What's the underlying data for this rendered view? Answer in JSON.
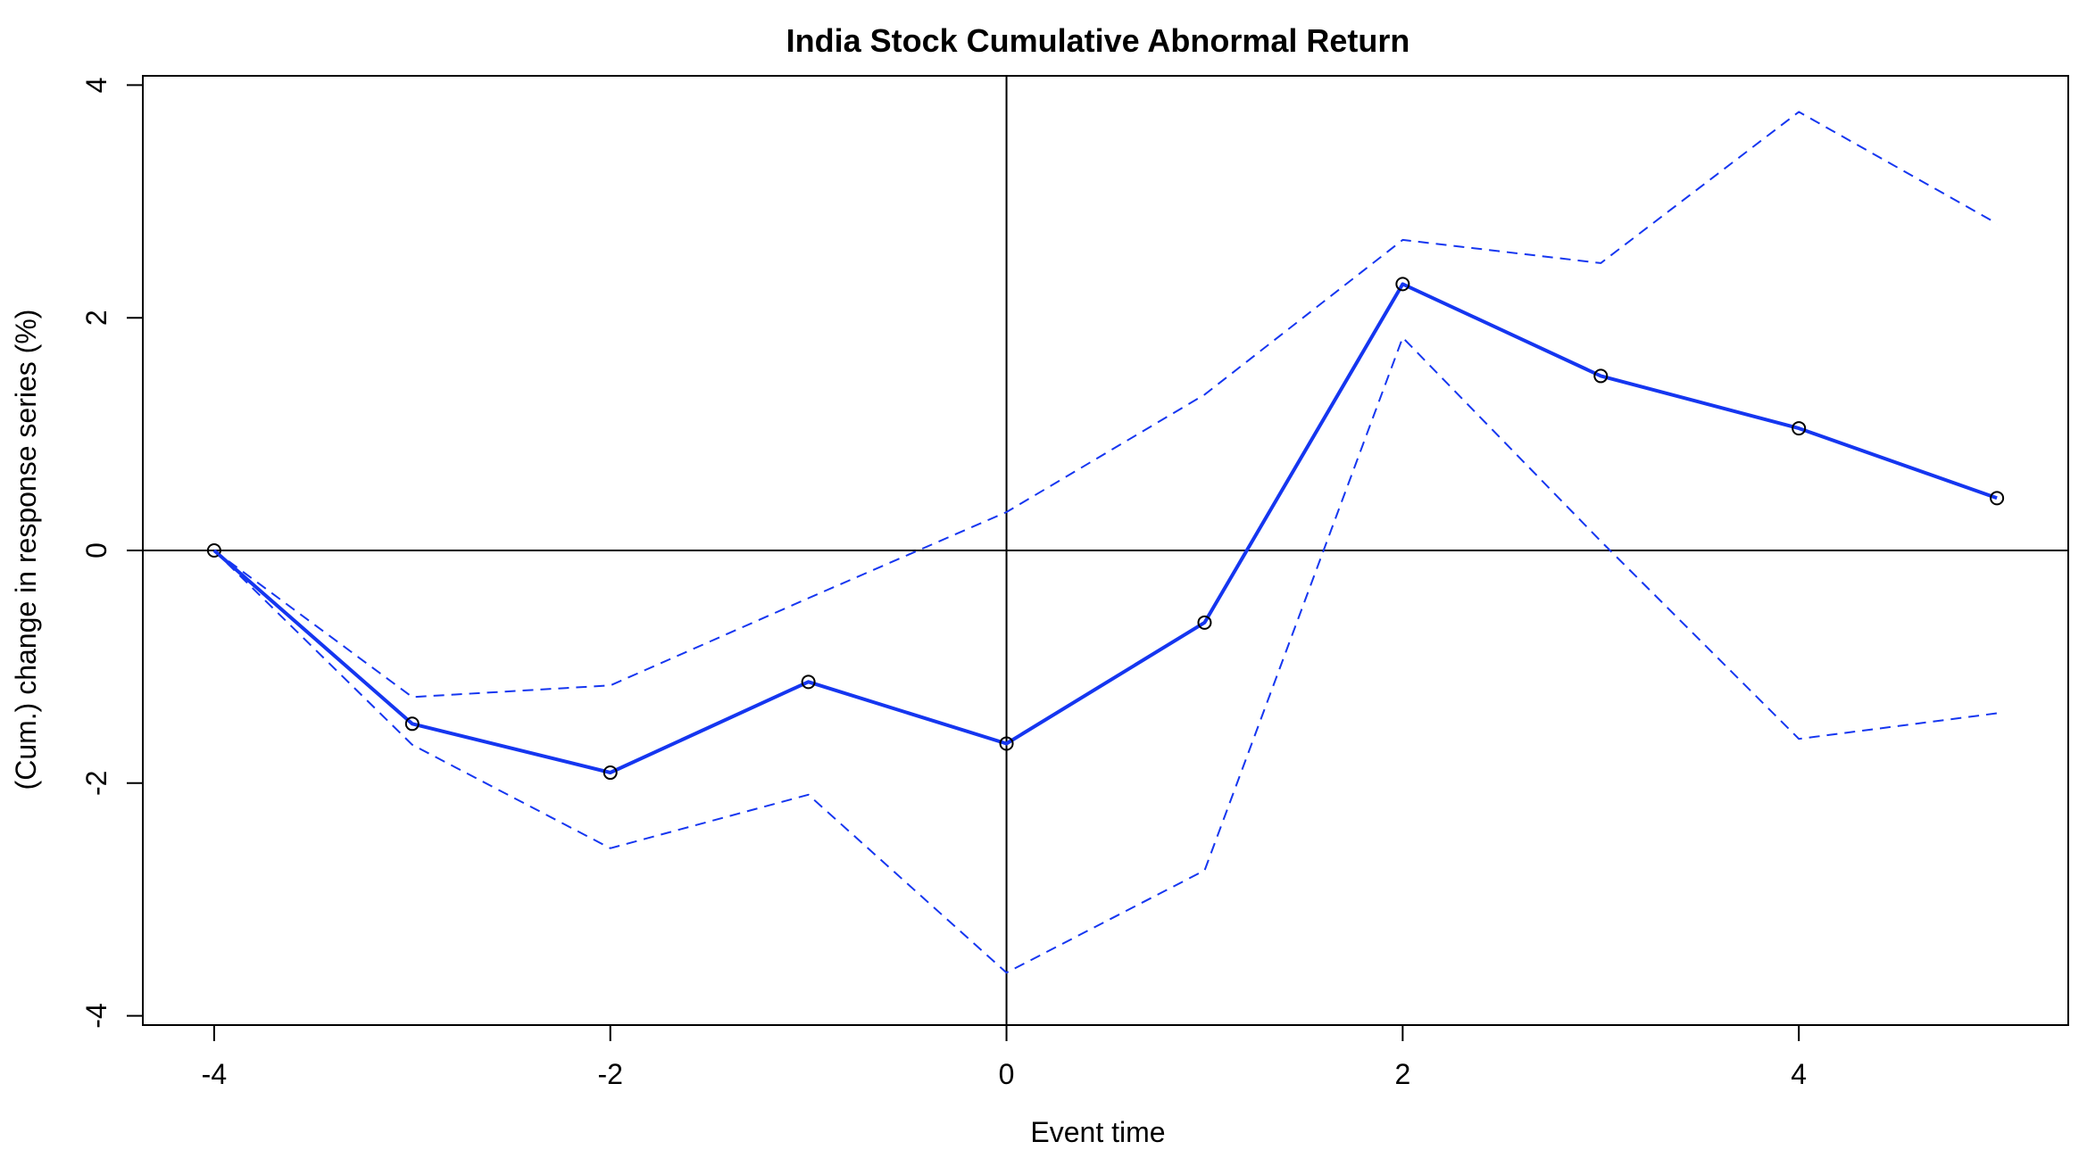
{
  "chart_data": {
    "type": "line",
    "title": "India Stock Cumulative Abnormal Return",
    "xlabel": "Event time",
    "ylabel": "(Cum.) change in response series (%)",
    "xlim": [
      -4.36,
      5.36
    ],
    "ylim": [
      -4.08,
      4.08
    ],
    "x_ticks": [
      -4,
      -2,
      0,
      2,
      4
    ],
    "y_ticks": [
      -4,
      -2,
      0,
      2,
      4
    ],
    "x_tick_labels": [
      "-4",
      "-2",
      "0",
      "2",
      "4"
    ],
    "y_tick_labels": [
      "-4",
      "-2",
      "0",
      "2",
      "4"
    ],
    "reference_lines": {
      "h": 0,
      "v": 0
    },
    "grid": false,
    "x": [
      -4,
      -3,
      -2,
      -1,
      0,
      1,
      2,
      3,
      4,
      5
    ],
    "series": [
      {
        "role": "estimate",
        "style": "solid-with-markers",
        "color": "#1536f0",
        "values": [
          0.0,
          -1.49,
          -1.91,
          -1.13,
          -1.66,
          -0.62,
          2.29,
          1.5,
          1.05,
          0.45
        ]
      },
      {
        "role": "upper-band",
        "style": "dashed",
        "color": "#1536f0",
        "values": [
          0.0,
          -1.26,
          -1.16,
          -0.41,
          0.33,
          1.34,
          2.67,
          2.47,
          3.77,
          2.81
        ]
      },
      {
        "role": "lower-band",
        "style": "dashed",
        "color": "#1536f0",
        "values": [
          0.0,
          -1.67,
          -2.56,
          -2.1,
          -3.63,
          -2.75,
          1.83,
          0.08,
          -1.62,
          -1.4
        ]
      }
    ]
  }
}
